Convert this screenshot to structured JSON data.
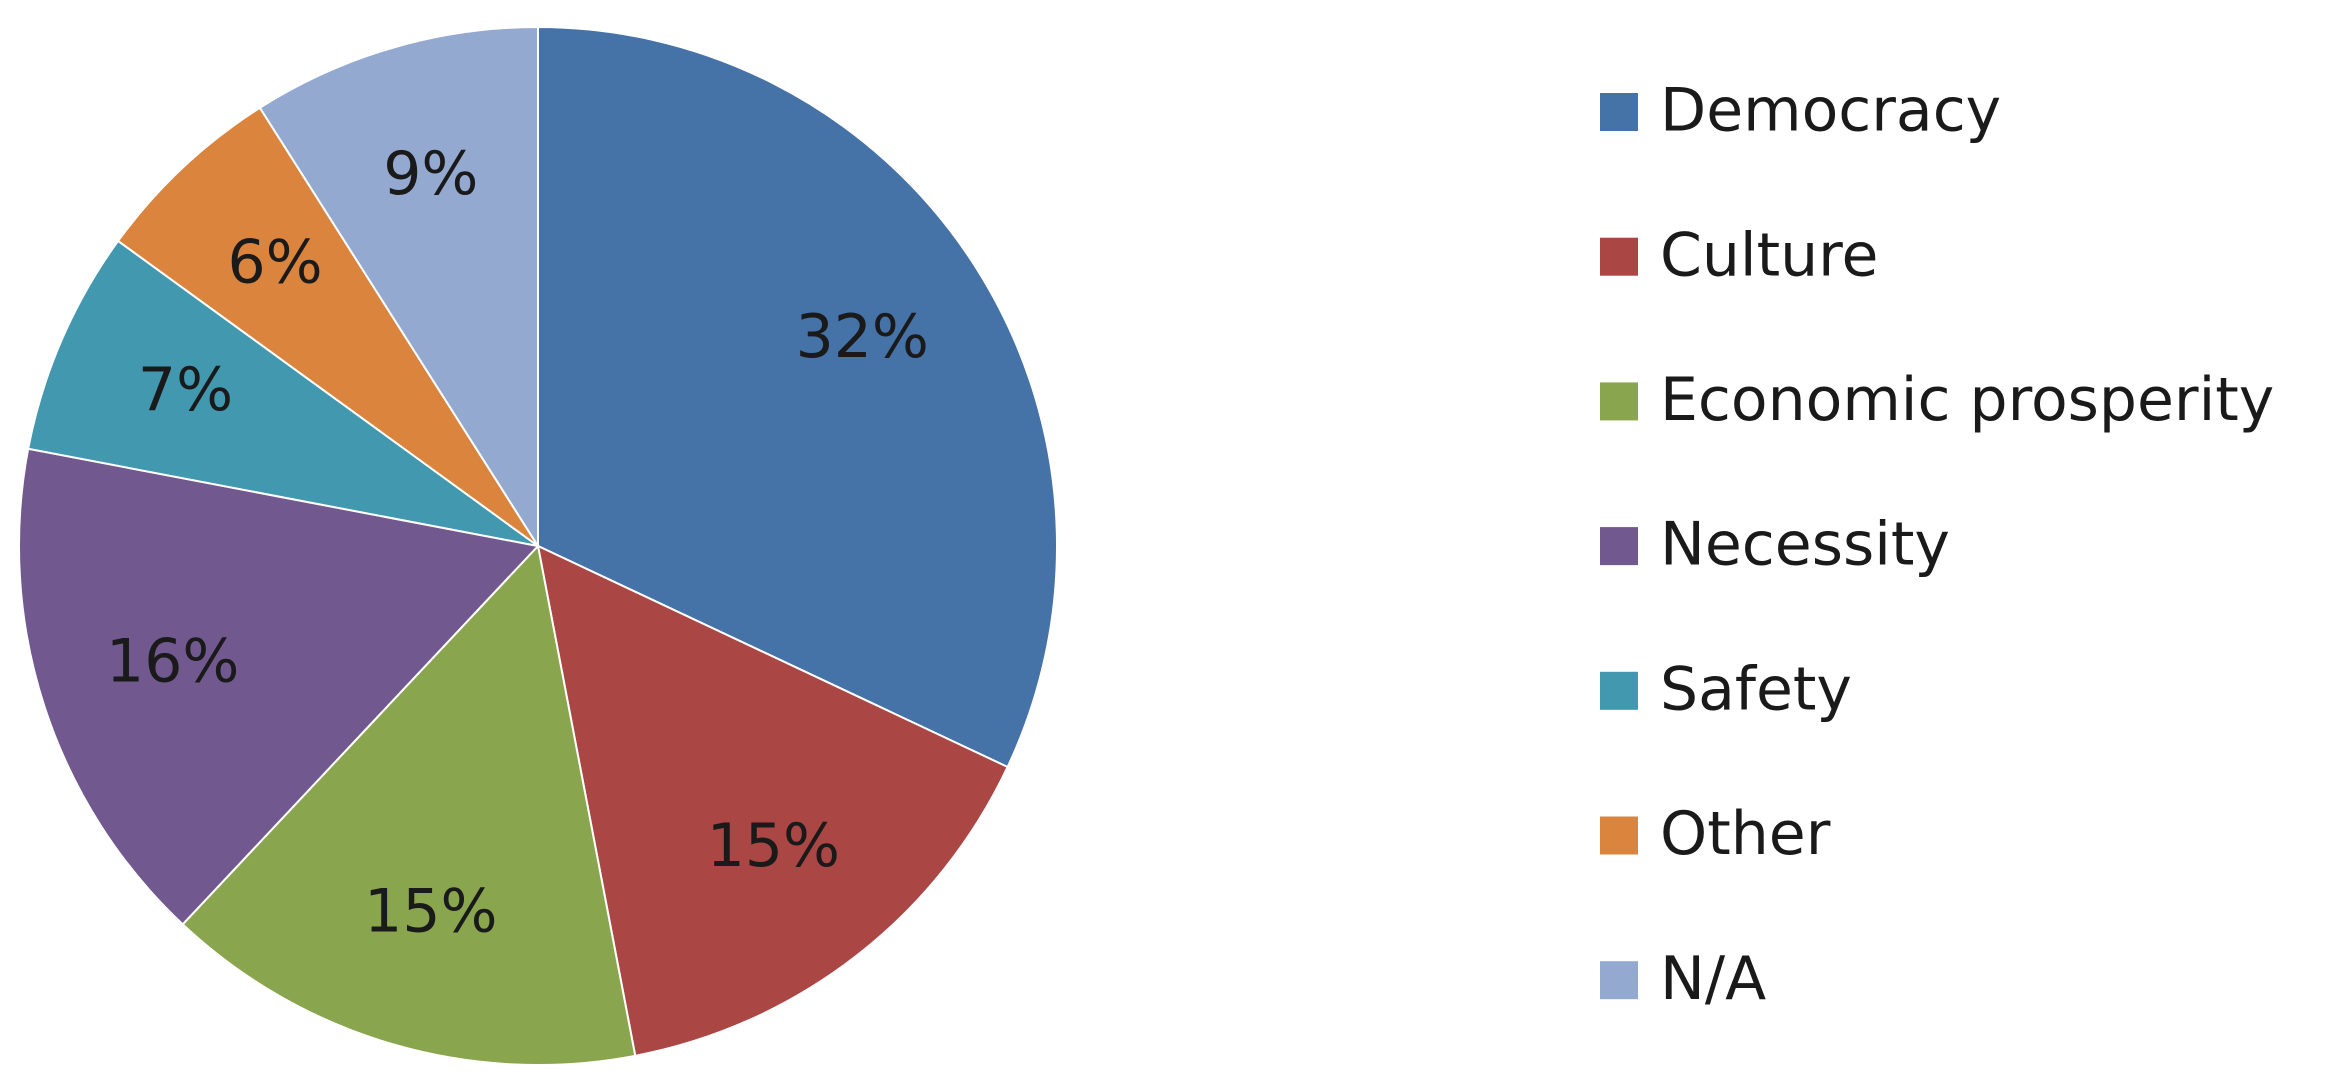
{
  "chart_data": {
    "type": "pie",
    "categories": [
      "Democracy",
      "Culture",
      "Economic prosperity",
      "Necessity",
      "Safety",
      "Other",
      "N/A"
    ],
    "values": [
      32,
      15,
      15,
      16,
      7,
      6,
      9
    ],
    "value_labels": [
      "32%",
      "15%",
      "15%",
      "16%",
      "7%",
      "6%",
      "9%"
    ],
    "colors": [
      "#4572a7",
      "#aa4643",
      "#89a54e",
      "#71588f",
      "#4198af",
      "#db843d",
      "#93a9cf"
    ],
    "legend": "right"
  }
}
